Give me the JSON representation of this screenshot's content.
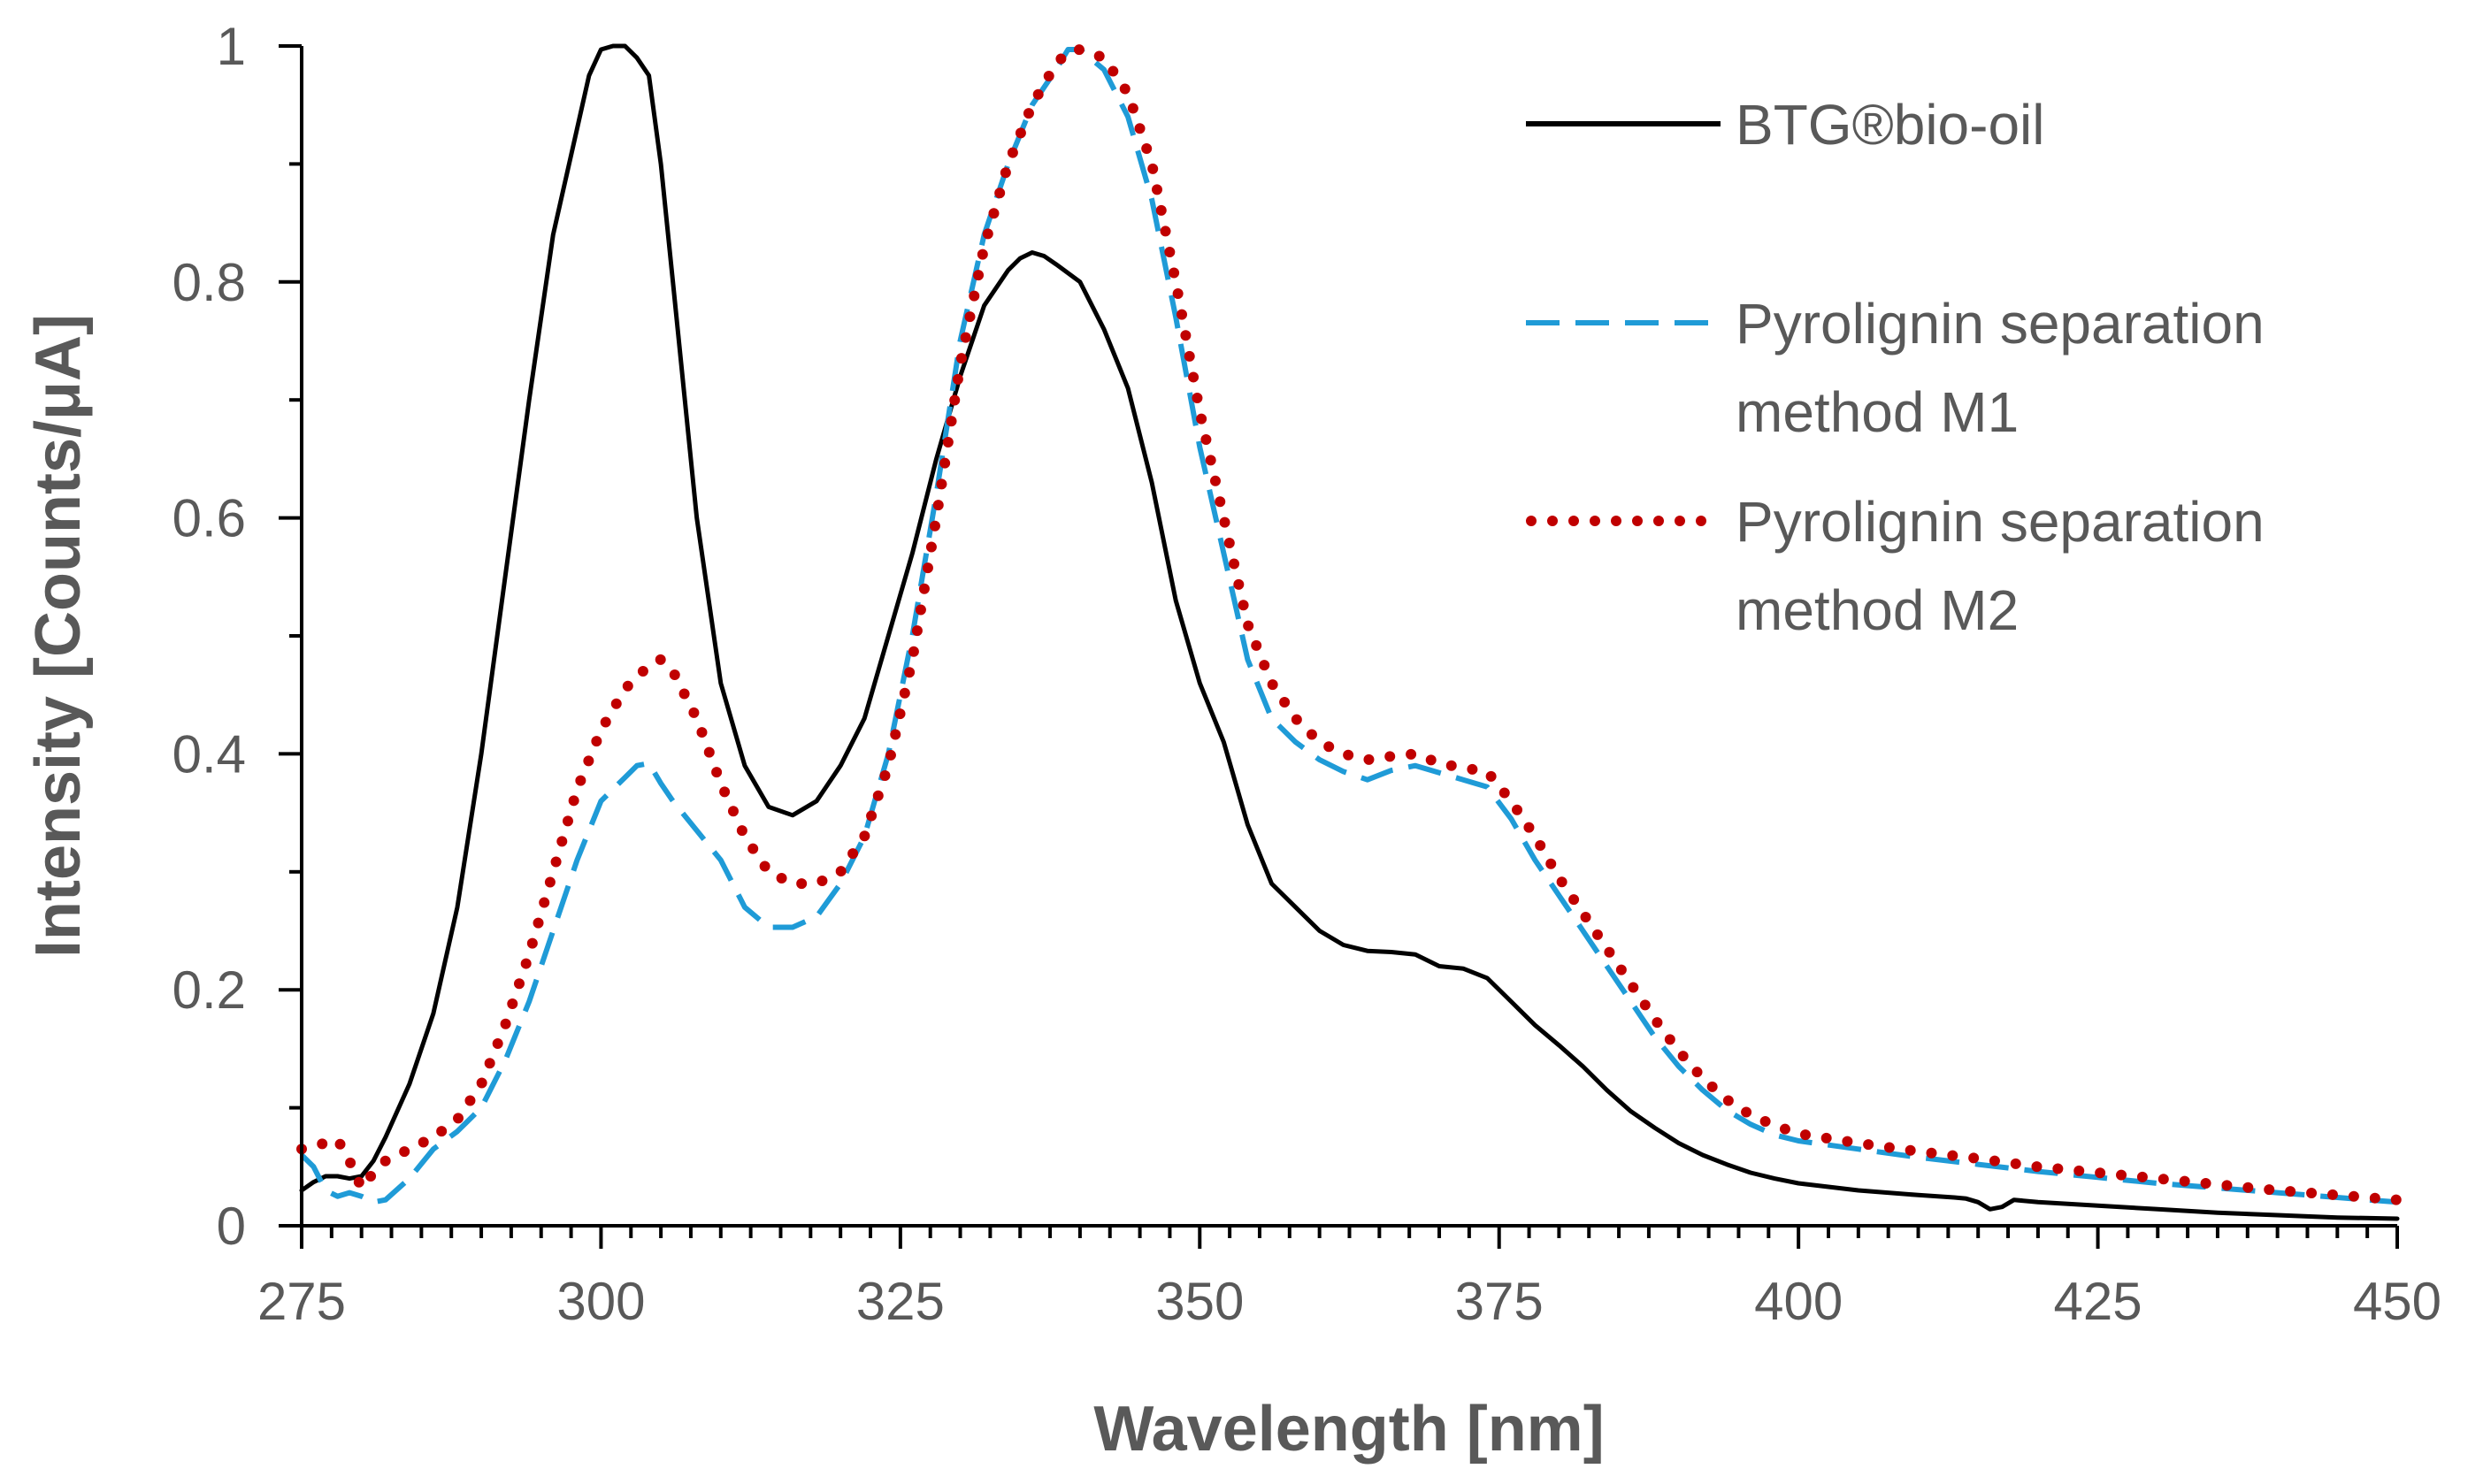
{
  "chart_data": {
    "type": "line",
    "title": "",
    "xlabel": "Wavelength [nm]",
    "ylabel": "Intensity [Counts/μA]",
    "xlim": [
      275,
      450
    ],
    "ylim": [
      0,
      1
    ],
    "xticks": [
      275,
      300,
      325,
      350,
      375,
      400,
      425,
      450
    ],
    "xtick_labels": [
      "275",
      "300",
      "325",
      "350",
      "375",
      "400",
      "425",
      "450"
    ],
    "yticks": [
      0,
      0.2,
      0.4,
      0.6,
      0.8,
      1
    ],
    "ytick_labels": [
      "0",
      "0.2",
      "0.4",
      "0.6",
      "0.8",
      "1"
    ],
    "x_minor_step": 2.5,
    "grid": false,
    "legend_position": "top-right",
    "series": [
      {
        "name": "BTG®bio-oil",
        "legend_lines": [
          "BTG®bio-oil"
        ],
        "color": "#000000",
        "style": "solid",
        "points": [
          [
            275,
            0.03
          ],
          [
            276,
            0.037
          ],
          [
            277,
            0.042
          ],
          [
            278,
            0.042
          ],
          [
            279,
            0.04
          ],
          [
            280,
            0.042
          ],
          [
            281,
            0.055
          ],
          [
            282,
            0.075
          ],
          [
            284,
            0.12
          ],
          [
            286,
            0.18
          ],
          [
            288,
            0.27
          ],
          [
            290,
            0.4
          ],
          [
            292,
            0.55
          ],
          [
            294,
            0.7
          ],
          [
            296,
            0.84
          ],
          [
            298,
            0.93
          ],
          [
            299,
            0.975
          ],
          [
            300,
            0.997
          ],
          [
            301,
            1.0
          ],
          [
            302,
            1.0
          ],
          [
            303,
            0.99
          ],
          [
            304,
            0.975
          ],
          [
            305,
            0.9
          ],
          [
            306,
            0.8
          ],
          [
            307,
            0.7
          ],
          [
            308,
            0.6
          ],
          [
            310,
            0.46
          ],
          [
            312,
            0.39
          ],
          [
            314,
            0.355
          ],
          [
            316,
            0.348
          ],
          [
            318,
            0.36
          ],
          [
            320,
            0.39
          ],
          [
            322,
            0.43
          ],
          [
            324,
            0.5
          ],
          [
            326,
            0.57
          ],
          [
            328,
            0.65
          ],
          [
            330,
            0.72
          ],
          [
            332,
            0.78
          ],
          [
            334,
            0.81
          ],
          [
            335,
            0.82
          ],
          [
            336,
            0.825
          ],
          [
            337,
            0.822
          ],
          [
            338,
            0.815
          ],
          [
            340,
            0.8
          ],
          [
            342,
            0.76
          ],
          [
            344,
            0.71
          ],
          [
            346,
            0.63
          ],
          [
            348,
            0.53
          ],
          [
            350,
            0.46
          ],
          [
            352,
            0.41
          ],
          [
            354,
            0.34
          ],
          [
            356,
            0.29
          ],
          [
            358,
            0.27
          ],
          [
            360,
            0.25
          ],
          [
            362,
            0.238
          ],
          [
            364,
            0.233
          ],
          [
            366,
            0.232
          ],
          [
            368,
            0.23
          ],
          [
            370,
            0.22
          ],
          [
            372,
            0.218
          ],
          [
            374,
            0.21
          ],
          [
            376,
            0.19
          ],
          [
            378,
            0.17
          ],
          [
            380,
            0.153
          ],
          [
            382,
            0.135
          ],
          [
            384,
            0.115
          ],
          [
            386,
            0.097
          ],
          [
            388,
            0.083
          ],
          [
            390,
            0.07
          ],
          [
            392,
            0.06
          ],
          [
            394,
            0.052
          ],
          [
            396,
            0.045
          ],
          [
            398,
            0.04
          ],
          [
            400,
            0.036
          ],
          [
            405,
            0.03
          ],
          [
            410,
            0.026
          ],
          [
            413,
            0.024
          ],
          [
            414,
            0.023
          ],
          [
            415,
            0.02
          ],
          [
            416,
            0.014
          ],
          [
            417,
            0.016
          ],
          [
            418,
            0.022
          ],
          [
            420,
            0.02
          ],
          [
            425,
            0.017
          ],
          [
            430,
            0.014
          ],
          [
            435,
            0.011
          ],
          [
            440,
            0.009
          ],
          [
            445,
            0.007
          ],
          [
            450,
            0.006
          ]
        ]
      },
      {
        "name": "Pyrolignin separation method M1",
        "legend_lines": [
          "Pyrolignin separation",
          "method M1"
        ],
        "color": "#1F9BD7",
        "style": "dashed",
        "points": [
          [
            275,
            0.06
          ],
          [
            276,
            0.05
          ],
          [
            277,
            0.03
          ],
          [
            278,
            0.025
          ],
          [
            279,
            0.028
          ],
          [
            280,
            0.025
          ],
          [
            281,
            0.02
          ],
          [
            282,
            0.022
          ],
          [
            284,
            0.04
          ],
          [
            286,
            0.065
          ],
          [
            288,
            0.08
          ],
          [
            290,
            0.1
          ],
          [
            292,
            0.14
          ],
          [
            294,
            0.19
          ],
          [
            296,
            0.25
          ],
          [
            298,
            0.31
          ],
          [
            300,
            0.36
          ],
          [
            302,
            0.38
          ],
          [
            303,
            0.39
          ],
          [
            304,
            0.392
          ],
          [
            305,
            0.375
          ],
          [
            306,
            0.36
          ],
          [
            308,
            0.335
          ],
          [
            310,
            0.31
          ],
          [
            312,
            0.27
          ],
          [
            314,
            0.253
          ],
          [
            316,
            0.253
          ],
          [
            318,
            0.262
          ],
          [
            320,
            0.29
          ],
          [
            322,
            0.33
          ],
          [
            324,
            0.4
          ],
          [
            326,
            0.5
          ],
          [
            328,
            0.62
          ],
          [
            330,
            0.75
          ],
          [
            332,
            0.84
          ],
          [
            334,
            0.9
          ],
          [
            336,
            0.95
          ],
          [
            338,
            0.98
          ],
          [
            339,
            0.997
          ],
          [
            340,
            0.997
          ],
          [
            342,
            0.98
          ],
          [
            344,
            0.94
          ],
          [
            346,
            0.87
          ],
          [
            348,
            0.77
          ],
          [
            350,
            0.66
          ],
          [
            352,
            0.57
          ],
          [
            354,
            0.48
          ],
          [
            356,
            0.43
          ],
          [
            358,
            0.41
          ],
          [
            360,
            0.395
          ],
          [
            362,
            0.385
          ],
          [
            364,
            0.378
          ],
          [
            366,
            0.386
          ],
          [
            368,
            0.39
          ],
          [
            370,
            0.384
          ],
          [
            372,
            0.378
          ],
          [
            374,
            0.372
          ],
          [
            376,
            0.345
          ],
          [
            378,
            0.31
          ],
          [
            380,
            0.28
          ],
          [
            382,
            0.25
          ],
          [
            384,
            0.22
          ],
          [
            386,
            0.19
          ],
          [
            388,
            0.16
          ],
          [
            390,
            0.135
          ],
          [
            392,
            0.115
          ],
          [
            394,
            0.098
          ],
          [
            396,
            0.086
          ],
          [
            398,
            0.077
          ],
          [
            400,
            0.072
          ],
          [
            405,
            0.065
          ],
          [
            410,
            0.058
          ],
          [
            415,
            0.052
          ],
          [
            420,
            0.046
          ],
          [
            425,
            0.041
          ],
          [
            430,
            0.036
          ],
          [
            435,
            0.032
          ],
          [
            440,
            0.028
          ],
          [
            445,
            0.024
          ],
          [
            450,
            0.02
          ]
        ]
      },
      {
        "name": "Pyrolignin separation method M2",
        "legend_lines": [
          "Pyrolignin separation",
          "method M2"
        ],
        "color": "#C00000",
        "style": "dotted",
        "points": [
          [
            275,
            0.065
          ],
          [
            276,
            0.068
          ],
          [
            277,
            0.07
          ],
          [
            278,
            0.073
          ],
          [
            279,
            0.055
          ],
          [
            280,
            0.032
          ],
          [
            281,
            0.045
          ],
          [
            282,
            0.055
          ],
          [
            284,
            0.065
          ],
          [
            286,
            0.075
          ],
          [
            288,
            0.09
          ],
          [
            290,
            0.12
          ],
          [
            292,
            0.17
          ],
          [
            294,
            0.23
          ],
          [
            296,
            0.3
          ],
          [
            298,
            0.37
          ],
          [
            300,
            0.42
          ],
          [
            302,
            0.455
          ],
          [
            304,
            0.475
          ],
          [
            305,
            0.48
          ],
          [
            306,
            0.47
          ],
          [
            308,
            0.43
          ],
          [
            310,
            0.375
          ],
          [
            312,
            0.33
          ],
          [
            314,
            0.3
          ],
          [
            316,
            0.29
          ],
          [
            318,
            0.29
          ],
          [
            320,
            0.3
          ],
          [
            322,
            0.33
          ],
          [
            324,
            0.39
          ],
          [
            326,
            0.48
          ],
          [
            328,
            0.6
          ],
          [
            330,
            0.73
          ],
          [
            332,
            0.83
          ],
          [
            334,
            0.9
          ],
          [
            336,
            0.95
          ],
          [
            338,
            0.985
          ],
          [
            339,
            0.995
          ],
          [
            340,
            0.997
          ],
          [
            342,
            0.99
          ],
          [
            344,
            0.96
          ],
          [
            346,
            0.9
          ],
          [
            348,
            0.8
          ],
          [
            350,
            0.69
          ],
          [
            352,
            0.6
          ],
          [
            354,
            0.51
          ],
          [
            356,
            0.46
          ],
          [
            358,
            0.43
          ],
          [
            360,
            0.41
          ],
          [
            362,
            0.4
          ],
          [
            364,
            0.395
          ],
          [
            366,
            0.398
          ],
          [
            368,
            0.4
          ],
          [
            370,
            0.392
          ],
          [
            372,
            0.388
          ],
          [
            374,
            0.385
          ],
          [
            376,
            0.36
          ],
          [
            378,
            0.33
          ],
          [
            380,
            0.295
          ],
          [
            382,
            0.265
          ],
          [
            384,
            0.235
          ],
          [
            386,
            0.205
          ],
          [
            388,
            0.175
          ],
          [
            390,
            0.148
          ],
          [
            392,
            0.125
          ],
          [
            394,
            0.107
          ],
          [
            396,
            0.094
          ],
          [
            398,
            0.085
          ],
          [
            400,
            0.078
          ],
          [
            405,
            0.07
          ],
          [
            410,
            0.063
          ],
          [
            415,
            0.057
          ],
          [
            420,
            0.05
          ],
          [
            425,
            0.045
          ],
          [
            430,
            0.04
          ],
          [
            435,
            0.035
          ],
          [
            440,
            0.03
          ],
          [
            445,
            0.026
          ],
          [
            450,
            0.022
          ]
        ]
      }
    ]
  }
}
